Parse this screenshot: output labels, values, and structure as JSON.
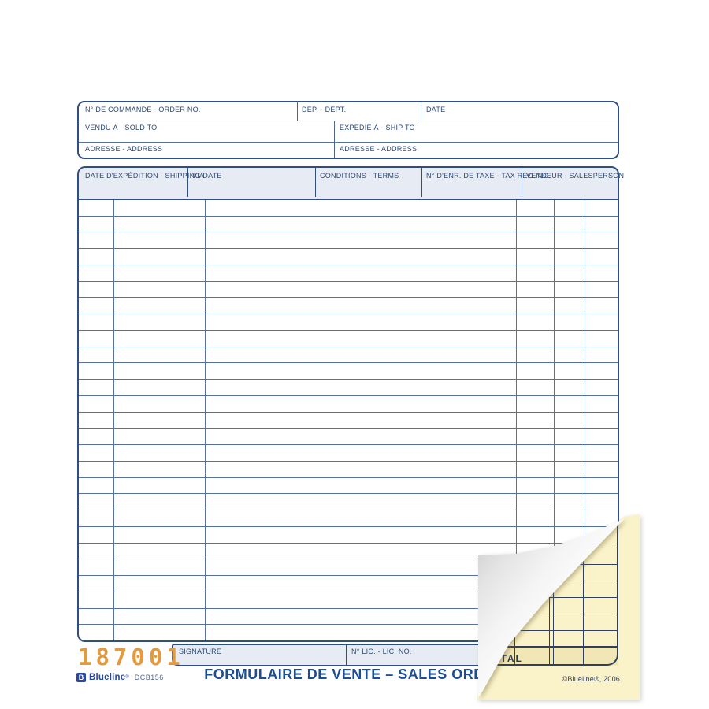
{
  "form": {
    "order_box": {
      "order_no_label": "N° DE COMMANDE - ORDER NO.",
      "dept_label": "DÉP. - DEPT.",
      "date_label": "DATE",
      "sold_to_label": "VENDU À - SOLD TO",
      "ship_to_label": "EXPÉDIÉ À - SHIP TO",
      "address_label_left": "ADRESSE - ADDRESS",
      "address_label_right": "ADRESSE - ADDRESS"
    },
    "details_header": {
      "shipping_date_label": "DATE D'EXPÉDITION - SHIPPING DATE",
      "via_label": "VIA",
      "terms_label": "CONDITIONS - TERMS",
      "tax_reg_label": "N° D'ENR. DE TAXE - TAX REG. NO.",
      "salesperson_label": "VENDEUR - SALESPERSON"
    },
    "grid": {
      "row_count": 27
    },
    "footer": {
      "signature_label": "SIGNATURE",
      "lic_no_label": "N° LIC. - LIC. NO.",
      "total_label": "TOTAL",
      "form_number": "187001",
      "title": "FORMULAIRE DE VENTE – SALES ORDER",
      "brand_name": "Blueline",
      "brand_reg": "®",
      "brand_code": "DCB156"
    }
  },
  "carbon_copy": {
    "total_label": "TOTAL",
    "copyright": "©Blueline®, 2006"
  },
  "colors": {
    "line_blue": "#54719f",
    "border_blue": "#2e4f80",
    "label_blue": "#2c4a78",
    "title_blue": "#1c4e94",
    "cell_fill": "#e7ebf3",
    "number_orange": "#e29a3d",
    "brand_blue": "#2747a0",
    "copy_paper_yellow": "#faf2c9",
    "copy_total_fill": "#f1e6b6",
    "copy_line_navy": "#31405a"
  }
}
